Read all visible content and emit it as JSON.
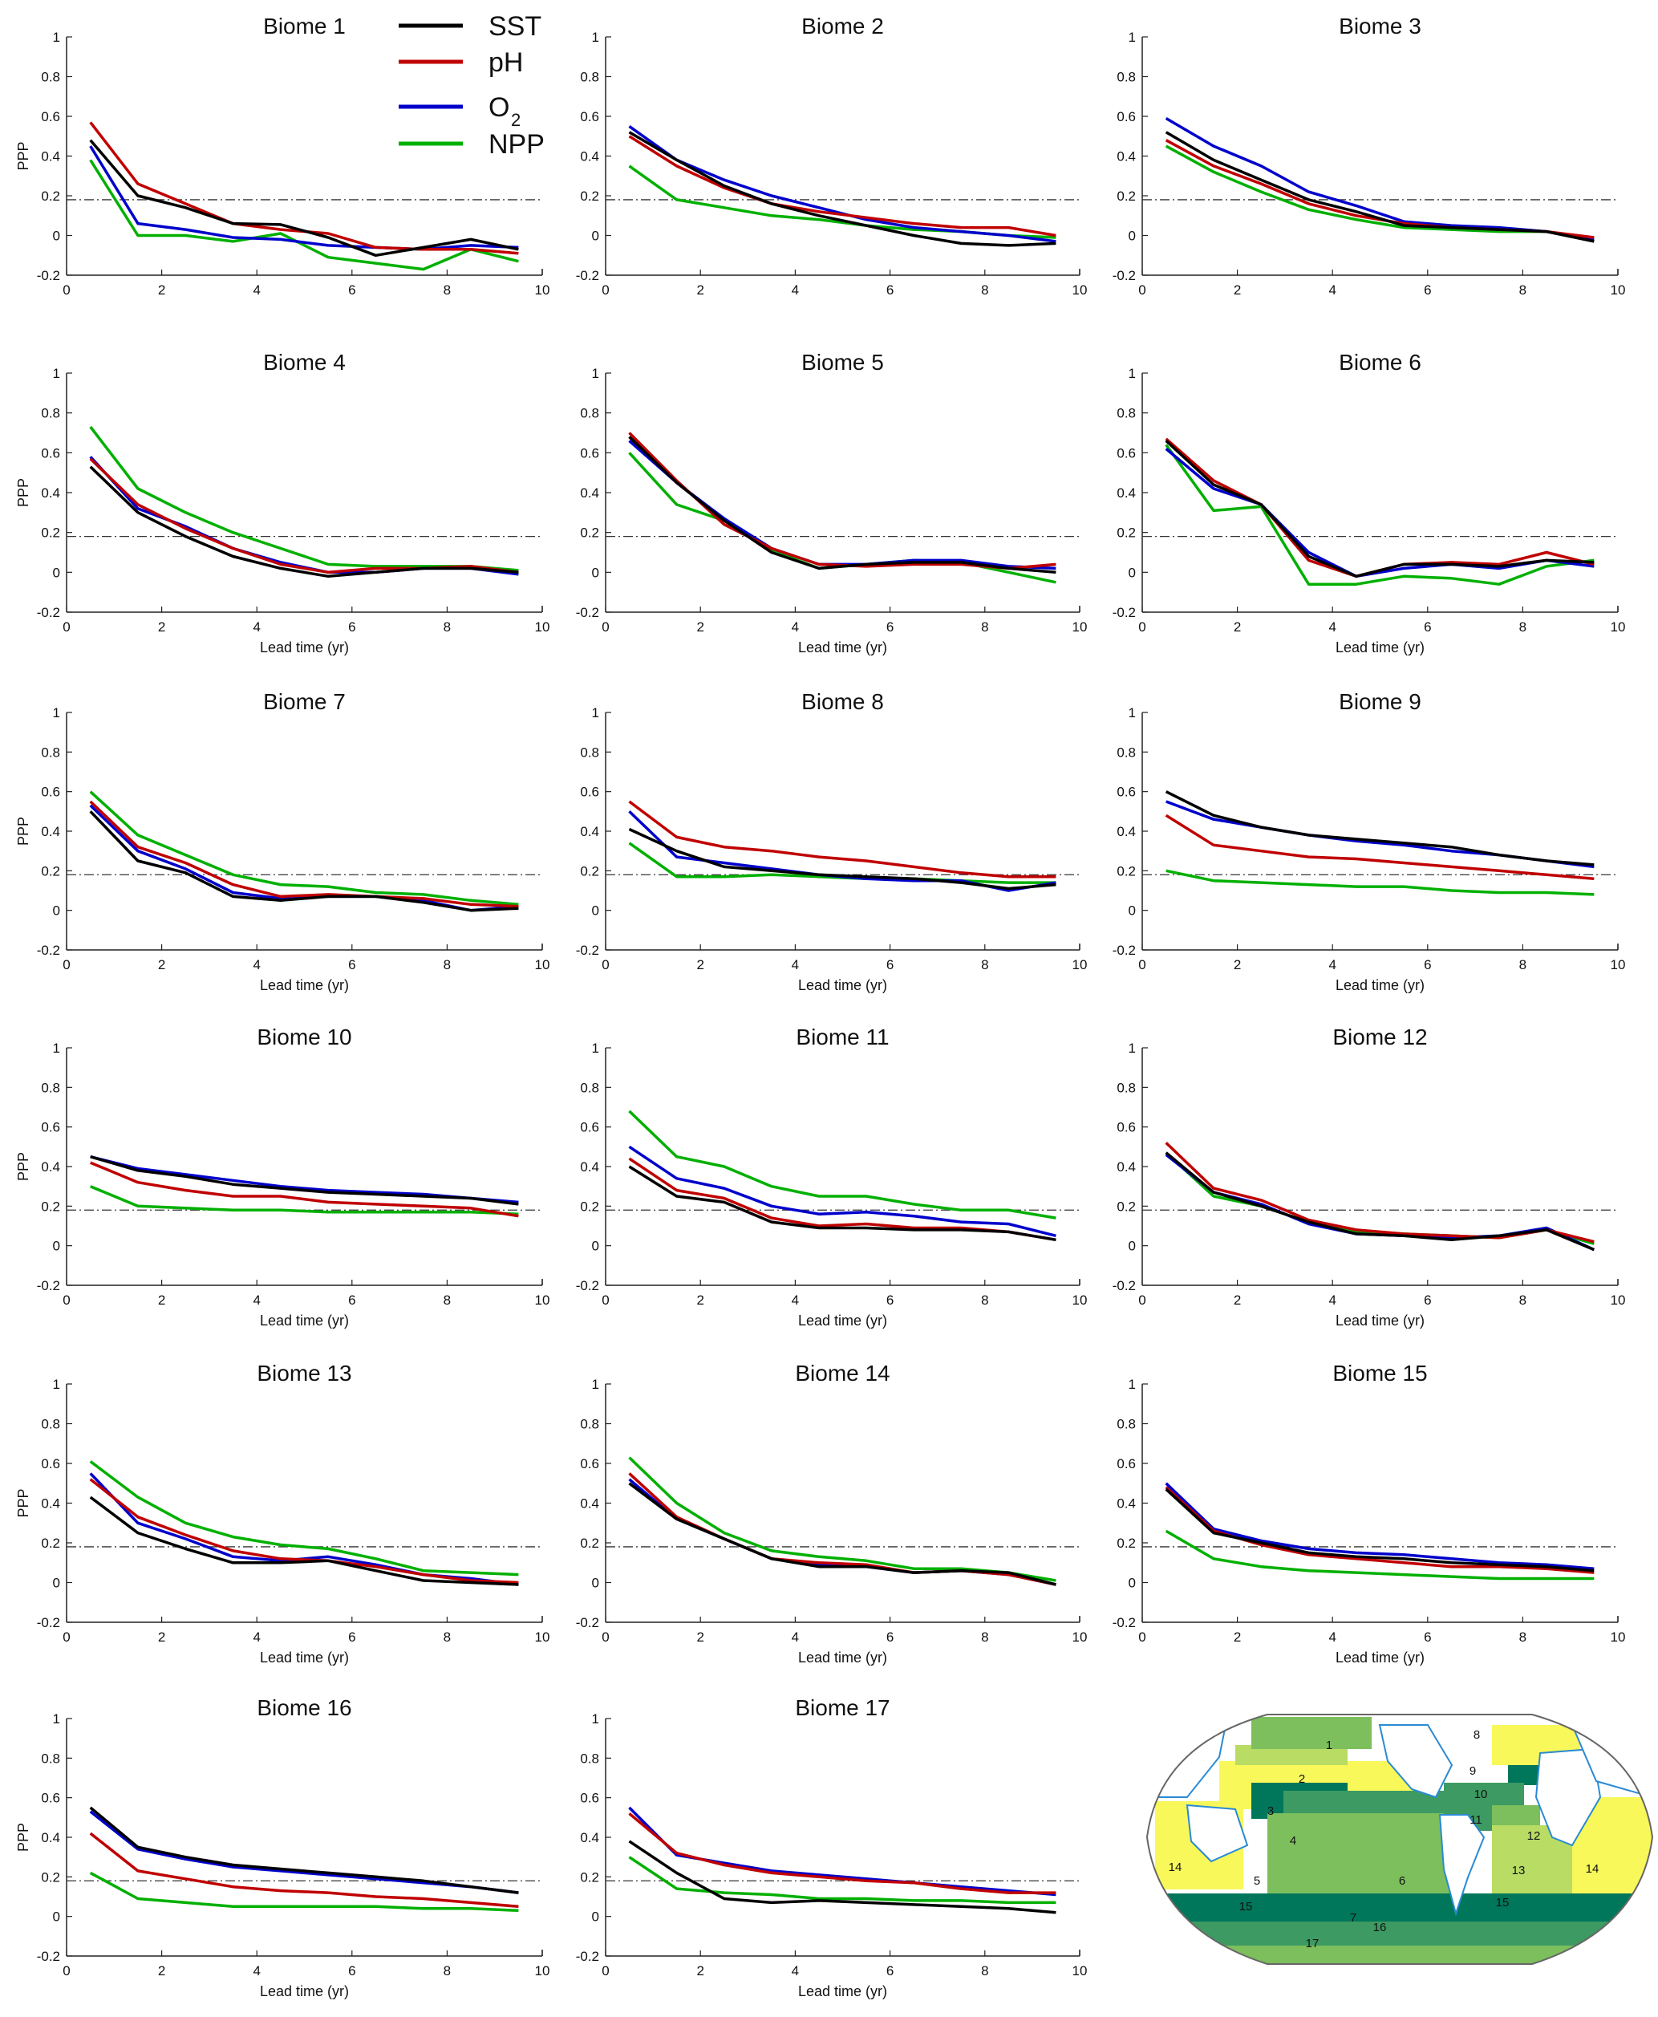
{
  "chart_data": {
    "type": "line",
    "layout": "small multiples, 6 rows x 3 columns, last cell holds a map",
    "xlim": [
      0,
      10
    ],
    "ylim": [
      -0.2,
      1
    ],
    "x_ticks": [
      "0",
      "2",
      "4",
      "6",
      "8",
      "10"
    ],
    "y_ticks": [
      "-0.2",
      "0",
      "0.2",
      "0.4",
      "0.6",
      "0.8",
      "1"
    ],
    "ylabel": "PPP",
    "xlabel": "Lead time (yr)",
    "threshold": 0.18,
    "threshold_style": "dash-dot",
    "grid": false,
    "legend": {
      "placement": "top of first panel",
      "entries": [
        {
          "key": "SST",
          "label": "SST",
          "color": "#000000"
        },
        {
          "key": "pH",
          "label": "pH",
          "color": "#c00000"
        },
        {
          "key": "O2",
          "label": "O",
          "sub": "2",
          "color": "#0000cc"
        },
        {
          "key": "NPP",
          "label": "NPP",
          "color": "#00b000"
        }
      ]
    },
    "x": [
      0.5,
      1.5,
      2.5,
      3.5,
      4.5,
      5.5,
      6.5,
      7.5,
      8.5,
      9.5
    ],
    "panels": [
      {
        "title": "Biome 1",
        "show_xlabel": false,
        "series": {
          "SST": [
            0.48,
            0.2,
            0.14,
            0.06,
            0.055,
            -0.01,
            -0.1,
            -0.06,
            -0.02,
            -0.07
          ],
          "pH": [
            0.57,
            0.26,
            0.16,
            0.06,
            0.03,
            0.01,
            -0.06,
            -0.07,
            -0.07,
            -0.09
          ],
          "O2": [
            0.45,
            0.06,
            0.03,
            -0.01,
            -0.02,
            -0.05,
            -0.06,
            -0.07,
            -0.05,
            -0.06
          ],
          "NPP": [
            0.38,
            0.0,
            0.0,
            -0.03,
            0.01,
            -0.11,
            -0.14,
            -0.17,
            -0.07,
            -0.13
          ]
        }
      },
      {
        "title": "Biome 2",
        "show_xlabel": false,
        "series": {
          "SST": [
            0.52,
            0.38,
            0.25,
            0.16,
            0.1,
            0.05,
            0.0,
            -0.04,
            -0.05,
            -0.04
          ],
          "pH": [
            0.5,
            0.35,
            0.24,
            0.16,
            0.12,
            0.09,
            0.06,
            0.04,
            0.04,
            0.0
          ],
          "O2": [
            0.55,
            0.38,
            0.28,
            0.2,
            0.14,
            0.08,
            0.04,
            0.02,
            0.0,
            -0.03
          ],
          "NPP": [
            0.35,
            0.18,
            0.14,
            0.1,
            0.08,
            0.05,
            0.03,
            0.02,
            0.0,
            -0.01
          ]
        }
      },
      {
        "title": "Biome 3",
        "show_xlabel": false,
        "series": {
          "SST": [
            0.52,
            0.38,
            0.28,
            0.18,
            0.12,
            0.05,
            0.04,
            0.03,
            0.02,
            -0.03
          ],
          "pH": [
            0.48,
            0.35,
            0.26,
            0.16,
            0.1,
            0.06,
            0.04,
            0.03,
            0.02,
            -0.01
          ],
          "O2": [
            0.59,
            0.45,
            0.35,
            0.22,
            0.15,
            0.07,
            0.05,
            0.04,
            0.02,
            -0.02
          ],
          "NPP": [
            0.45,
            0.32,
            0.22,
            0.13,
            0.08,
            0.04,
            0.03,
            0.02,
            0.02,
            -0.02
          ]
        }
      },
      {
        "title": "Biome 4",
        "show_xlabel": true,
        "series": {
          "SST": [
            0.53,
            0.3,
            0.18,
            0.08,
            0.02,
            -0.02,
            0.0,
            0.02,
            0.02,
            0.0
          ],
          "pH": [
            0.57,
            0.34,
            0.22,
            0.12,
            0.04,
            0.0,
            0.02,
            0.02,
            0.03,
            0.0
          ],
          "O2": [
            0.58,
            0.32,
            0.23,
            0.12,
            0.05,
            0.0,
            0.0,
            0.02,
            0.02,
            -0.01
          ],
          "NPP": [
            0.73,
            0.42,
            0.3,
            0.2,
            0.12,
            0.04,
            0.03,
            0.03,
            0.03,
            0.01
          ]
        }
      },
      {
        "title": "Biome 5",
        "show_xlabel": true,
        "series": {
          "SST": [
            0.68,
            0.45,
            0.26,
            0.1,
            0.02,
            0.04,
            0.05,
            0.05,
            0.02,
            0.0
          ],
          "pH": [
            0.7,
            0.46,
            0.24,
            0.12,
            0.04,
            0.03,
            0.04,
            0.04,
            0.02,
            0.04
          ],
          "O2": [
            0.66,
            0.45,
            0.27,
            0.12,
            0.04,
            0.04,
            0.06,
            0.06,
            0.03,
            0.02
          ],
          "NPP": [
            0.6,
            0.34,
            0.26,
            0.11,
            0.02,
            0.04,
            0.06,
            0.05,
            0.0,
            -0.05
          ]
        }
      },
      {
        "title": "Biome 6",
        "show_xlabel": true,
        "series": {
          "SST": [
            0.66,
            0.44,
            0.34,
            0.08,
            -0.02,
            0.04,
            0.04,
            0.03,
            0.06,
            0.05
          ],
          "pH": [
            0.67,
            0.46,
            0.34,
            0.06,
            -0.02,
            0.04,
            0.05,
            0.04,
            0.1,
            0.04
          ],
          "O2": [
            0.62,
            0.42,
            0.34,
            0.1,
            -0.02,
            0.02,
            0.04,
            0.02,
            0.06,
            0.03
          ],
          "NPP": [
            0.64,
            0.31,
            0.33,
            -0.06,
            -0.06,
            -0.02,
            -0.03,
            -0.06,
            0.03,
            0.06
          ]
        }
      },
      {
        "title": "Biome 7",
        "show_xlabel": true,
        "series": {
          "SST": [
            0.5,
            0.25,
            0.19,
            0.07,
            0.05,
            0.07,
            0.07,
            0.04,
            0.0,
            0.01
          ],
          "pH": [
            0.55,
            0.32,
            0.24,
            0.13,
            0.07,
            0.08,
            0.07,
            0.06,
            0.03,
            0.02
          ],
          "O2": [
            0.53,
            0.3,
            0.21,
            0.09,
            0.06,
            0.07,
            0.07,
            0.05,
            0.0,
            0.02
          ],
          "NPP": [
            0.6,
            0.38,
            0.28,
            0.18,
            0.13,
            0.12,
            0.09,
            0.08,
            0.05,
            0.03
          ]
        }
      },
      {
        "title": "Biome 8",
        "show_xlabel": true,
        "series": {
          "SST": [
            0.41,
            0.3,
            0.22,
            0.2,
            0.18,
            0.17,
            0.16,
            0.14,
            0.11,
            0.13
          ],
          "pH": [
            0.55,
            0.37,
            0.32,
            0.3,
            0.27,
            0.25,
            0.22,
            0.19,
            0.17,
            0.17
          ],
          "O2": [
            0.5,
            0.27,
            0.24,
            0.21,
            0.18,
            0.16,
            0.15,
            0.15,
            0.1,
            0.14
          ],
          "NPP": [
            0.34,
            0.17,
            0.17,
            0.18,
            0.17,
            0.16,
            0.16,
            0.15,
            0.14,
            0.14
          ]
        }
      },
      {
        "title": "Biome 9",
        "show_xlabel": true,
        "series": {
          "SST": [
            0.6,
            0.48,
            0.42,
            0.38,
            0.36,
            0.34,
            0.32,
            0.28,
            0.25,
            0.23
          ],
          "pH": [
            0.48,
            0.33,
            0.3,
            0.27,
            0.26,
            0.24,
            0.22,
            0.2,
            0.18,
            0.16
          ],
          "O2": [
            0.55,
            0.46,
            0.42,
            0.38,
            0.35,
            0.33,
            0.3,
            0.28,
            0.25,
            0.22
          ],
          "NPP": [
            0.2,
            0.15,
            0.14,
            0.13,
            0.12,
            0.12,
            0.1,
            0.09,
            0.09,
            0.08
          ]
        }
      },
      {
        "title": "Biome 10",
        "show_xlabel": true,
        "series": {
          "SST": [
            0.45,
            0.38,
            0.35,
            0.31,
            0.29,
            0.27,
            0.26,
            0.25,
            0.24,
            0.21
          ],
          "pH": [
            0.42,
            0.32,
            0.28,
            0.25,
            0.25,
            0.22,
            0.21,
            0.2,
            0.19,
            0.15
          ],
          "O2": [
            0.45,
            0.39,
            0.36,
            0.33,
            0.3,
            0.28,
            0.27,
            0.26,
            0.24,
            0.22
          ],
          "NPP": [
            0.3,
            0.2,
            0.19,
            0.18,
            0.18,
            0.17,
            0.17,
            0.17,
            0.17,
            0.16
          ]
        }
      },
      {
        "title": "Biome 11",
        "show_xlabel": true,
        "series": {
          "SST": [
            0.4,
            0.25,
            0.22,
            0.12,
            0.09,
            0.09,
            0.08,
            0.08,
            0.07,
            0.03
          ],
          "pH": [
            0.44,
            0.28,
            0.24,
            0.14,
            0.1,
            0.11,
            0.09,
            0.09,
            0.07,
            0.03
          ],
          "O2": [
            0.5,
            0.34,
            0.29,
            0.2,
            0.16,
            0.17,
            0.15,
            0.12,
            0.11,
            0.05
          ],
          "NPP": [
            0.68,
            0.45,
            0.4,
            0.3,
            0.25,
            0.25,
            0.21,
            0.18,
            0.18,
            0.14
          ]
        }
      },
      {
        "title": "Biome 12",
        "show_xlabel": true,
        "series": {
          "SST": [
            0.47,
            0.27,
            0.2,
            0.12,
            0.06,
            0.05,
            0.03,
            0.05,
            0.08,
            -0.02
          ],
          "pH": [
            0.52,
            0.29,
            0.23,
            0.13,
            0.08,
            0.06,
            0.05,
            0.04,
            0.08,
            0.02
          ],
          "O2": [
            0.46,
            0.27,
            0.21,
            0.11,
            0.06,
            0.05,
            0.04,
            0.05,
            0.09,
            -0.02
          ],
          "NPP": [
            0.47,
            0.25,
            0.2,
            0.12,
            0.07,
            0.06,
            0.05,
            0.04,
            0.08,
            0.01
          ]
        }
      },
      {
        "title": "Biome 13",
        "show_xlabel": true,
        "series": {
          "SST": [
            0.43,
            0.25,
            0.17,
            0.1,
            0.1,
            0.11,
            0.06,
            0.01,
            0.0,
            -0.01
          ],
          "pH": [
            0.52,
            0.33,
            0.24,
            0.16,
            0.12,
            0.11,
            0.08,
            0.04,
            0.01,
            0.0
          ],
          "O2": [
            0.55,
            0.3,
            0.22,
            0.13,
            0.11,
            0.13,
            0.09,
            0.04,
            0.02,
            -0.01
          ],
          "NPP": [
            0.61,
            0.43,
            0.3,
            0.23,
            0.19,
            0.17,
            0.12,
            0.06,
            0.05,
            0.04
          ]
        }
      },
      {
        "title": "Biome 14",
        "show_xlabel": true,
        "series": {
          "SST": [
            0.5,
            0.32,
            0.22,
            0.12,
            0.08,
            0.08,
            0.05,
            0.06,
            0.05,
            -0.01
          ],
          "pH": [
            0.55,
            0.33,
            0.22,
            0.12,
            0.1,
            0.09,
            0.05,
            0.06,
            0.04,
            -0.01
          ],
          "O2": [
            0.52,
            0.32,
            0.22,
            0.12,
            0.09,
            0.08,
            0.05,
            0.06,
            0.04,
            -0.01
          ],
          "NPP": [
            0.63,
            0.4,
            0.25,
            0.16,
            0.13,
            0.11,
            0.07,
            0.07,
            0.05,
            0.01
          ]
        }
      },
      {
        "title": "Biome 15",
        "show_xlabel": true,
        "series": {
          "SST": [
            0.47,
            0.25,
            0.2,
            0.15,
            0.13,
            0.12,
            0.1,
            0.09,
            0.08,
            0.06
          ],
          "pH": [
            0.48,
            0.26,
            0.19,
            0.14,
            0.12,
            0.1,
            0.08,
            0.08,
            0.07,
            0.05
          ],
          "O2": [
            0.5,
            0.27,
            0.21,
            0.17,
            0.15,
            0.14,
            0.12,
            0.1,
            0.09,
            0.07
          ],
          "NPP": [
            0.26,
            0.12,
            0.08,
            0.06,
            0.05,
            0.04,
            0.03,
            0.02,
            0.02,
            0.02
          ]
        }
      },
      {
        "title": "Biome 16",
        "show_xlabel": true,
        "series": {
          "SST": [
            0.55,
            0.35,
            0.3,
            0.26,
            0.24,
            0.22,
            0.2,
            0.18,
            0.15,
            0.12
          ],
          "pH": [
            0.42,
            0.23,
            0.19,
            0.15,
            0.13,
            0.12,
            0.1,
            0.09,
            0.07,
            0.05
          ],
          "O2": [
            0.53,
            0.34,
            0.29,
            0.25,
            0.23,
            0.21,
            0.19,
            0.17,
            0.15,
            0.12
          ],
          "NPP": [
            0.22,
            0.09,
            0.07,
            0.05,
            0.05,
            0.05,
            0.05,
            0.04,
            0.04,
            0.03
          ]
        }
      },
      {
        "title": "Biome 17",
        "show_xlabel": true,
        "series": {
          "SST": [
            0.38,
            0.22,
            0.09,
            0.07,
            0.08,
            0.07,
            0.06,
            0.05,
            0.04,
            0.02
          ],
          "pH": [
            0.52,
            0.32,
            0.26,
            0.22,
            0.2,
            0.18,
            0.17,
            0.14,
            0.12,
            0.12
          ],
          "O2": [
            0.55,
            0.31,
            0.27,
            0.23,
            0.21,
            0.19,
            0.17,
            0.15,
            0.13,
            0.11
          ],
          "NPP": [
            0.3,
            0.14,
            0.12,
            0.11,
            0.09,
            0.09,
            0.08,
            0.08,
            0.07,
            0.07
          ]
        }
      }
    ]
  },
  "map": {
    "labels": [
      "1",
      "2",
      "3",
      "4",
      "5",
      "6",
      "7",
      "8",
      "9",
      "10",
      "11",
      "12",
      "13",
      "14",
      "14",
      "15",
      "15",
      "16",
      "17"
    ],
    "colors": {
      "yellow": "#f8f85a",
      "light_green": "#b8dc64",
      "mid_green": "#7cbf5c",
      "green": "#3d9a62",
      "dark_green": "#00775a",
      "coast": "#2a8ad4"
    }
  }
}
